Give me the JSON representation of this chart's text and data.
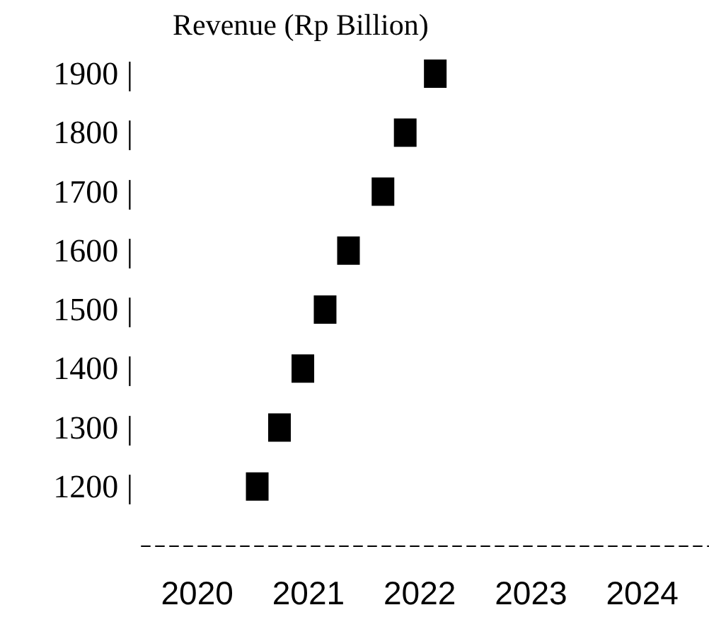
{
  "chart_data": {
    "type": "scatter",
    "title": "Revenue (Rp Billion)",
    "x": [
      2020.54,
      2020.74,
      2020.95,
      2021.15,
      2021.36,
      2021.67,
      2021.87,
      2022.14
    ],
    "values": [
      1200,
      1300,
      1400,
      1500,
      1600,
      1700,
      1800,
      1900
    ],
    "color": "#000000",
    "marker": "square",
    "xlim": [
      2019.5,
      2024.6
    ],
    "xticks": [
      2020,
      2021,
      2022,
      2023,
      2024
    ],
    "ylim": [
      1100,
      1900
    ],
    "yticks": [
      {
        "value": 1200,
        "label": "1200 |"
      },
      {
        "value": 1300,
        "label": "1300 |"
      },
      {
        "value": 1400,
        "label": "1400 |"
      },
      {
        "value": 1500,
        "label": "1500 |"
      },
      {
        "value": 1600,
        "label": "1600 |"
      },
      {
        "value": 1700,
        "label": "1700 |"
      },
      {
        "value": 1800,
        "label": "1800 |"
      },
      {
        "value": 1900,
        "label": "1900 |"
      }
    ]
  }
}
